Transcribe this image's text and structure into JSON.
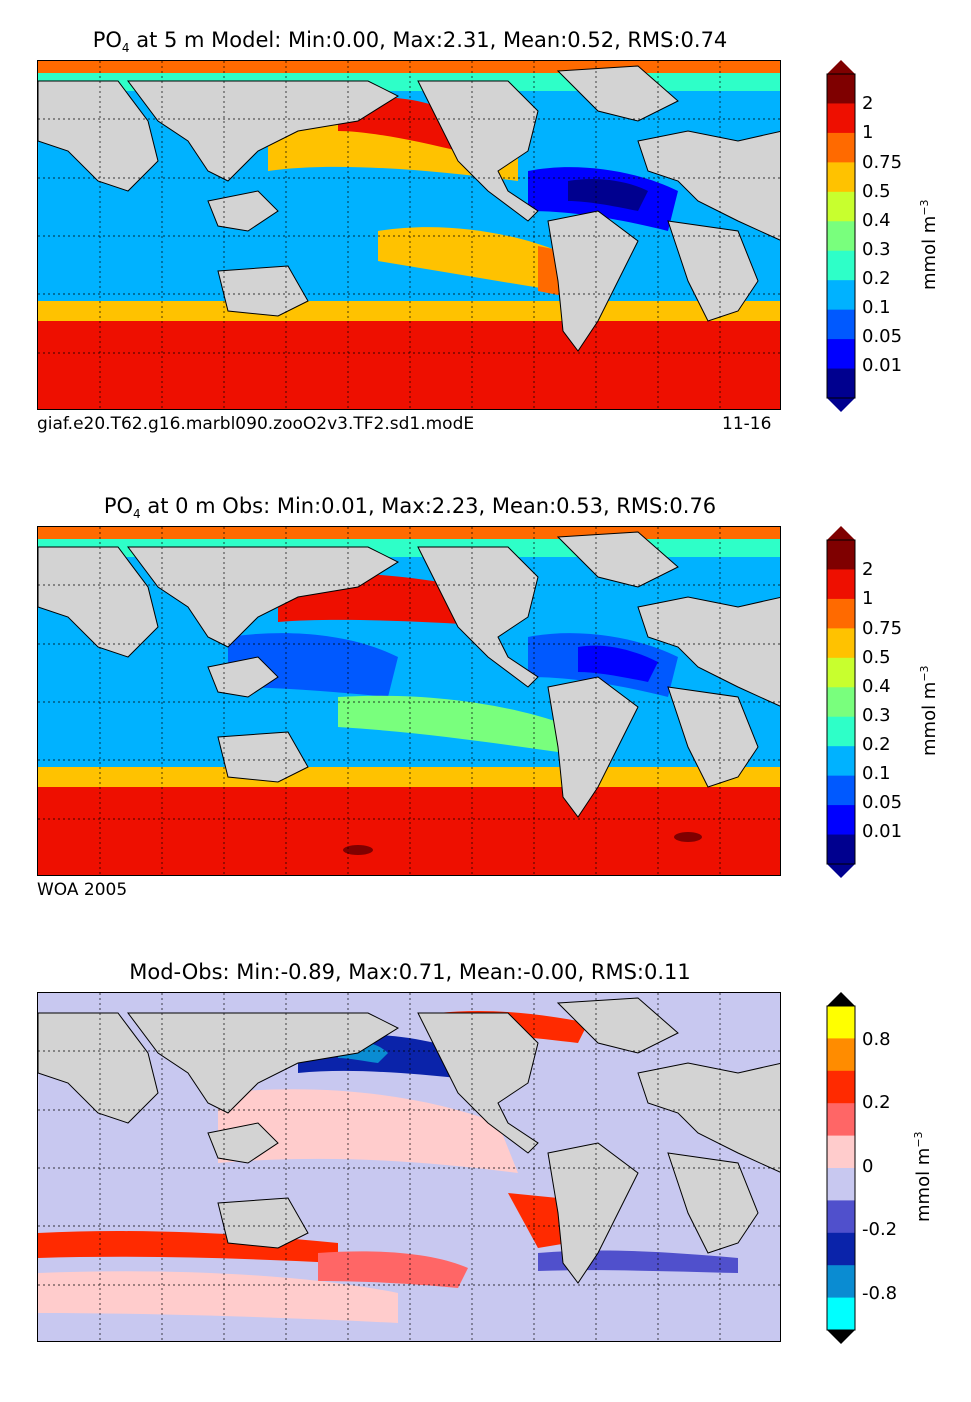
{
  "panels": [
    {
      "title_prefix": "PO",
      "title_sub": "4",
      "title_rest": " at 5 m Model: Min:0.00, Max:2.31, Mean:0.52, RMS:0.74",
      "caption_left": "giaf.e20.T62.g16.marbl090.zooO2v3.TF2.sd1.modE",
      "caption_right": "11-16",
      "colorbar": {
        "ticks": [
          "2",
          "1",
          "0.75",
          "0.5",
          "0.4",
          "0.3",
          "0.2",
          "0.1",
          "0.05",
          "0.01"
        ],
        "colors": [
          "#7f0000",
          "#ee0f00",
          "#ff6a00",
          "#ffc200",
          "#c8ff2e",
          "#79ff7d",
          "#2effc8",
          "#00b2ff",
          "#0059ff",
          "#0000ff",
          "#00008f"
        ],
        "extend_top": "#7f0000",
        "extend_bottom": "#00008f"
      },
      "unit_base": "mmol m",
      "unit_exp": "−3"
    },
    {
      "title_prefix": "PO",
      "title_sub": "4",
      "title_rest": " at 0 m Obs: Min:0.01, Max:2.23, Mean:0.53, RMS:0.76",
      "caption_left": "WOA 2005",
      "caption_right": "",
      "colorbar": {
        "ticks": [
          "2",
          "1",
          "0.75",
          "0.5",
          "0.4",
          "0.3",
          "0.2",
          "0.1",
          "0.05",
          "0.01"
        ],
        "colors": [
          "#7f0000",
          "#ee0f00",
          "#ff6a00",
          "#ffc200",
          "#c8ff2e",
          "#79ff7d",
          "#2effc8",
          "#00b2ff",
          "#0059ff",
          "#0000ff",
          "#00008f"
        ],
        "extend_top": "#7f0000",
        "extend_bottom": "#00008f"
      },
      "unit_base": "mmol m",
      "unit_exp": "−3"
    },
    {
      "title_prefix": "Mod-Obs: Min:-0.89, Max:0.71, Mean:-0.00, RMS:0.11",
      "title_sub": "",
      "title_rest": "",
      "caption_left": "",
      "caption_right": "",
      "colorbar": {
        "ticks": [
          "0.8",
          "0.2",
          "0",
          "-0.2",
          "-0.8"
        ],
        "colors": [
          "#ffff00",
          "#ff8c00",
          "#ff2a00",
          "#ff6666",
          "#ffcccc",
          "#c8c8f0",
          "#5050cc",
          "#0a23aa",
          "#0a8cd2",
          "#00ffff"
        ],
        "extend_top": "#000000",
        "extend_bottom": "#000000"
      },
      "unit_base": "mmol m",
      "unit_exp": "−3"
    }
  ],
  "colors": {
    "land": "#d3d3d3",
    "map_border": "#000000"
  }
}
